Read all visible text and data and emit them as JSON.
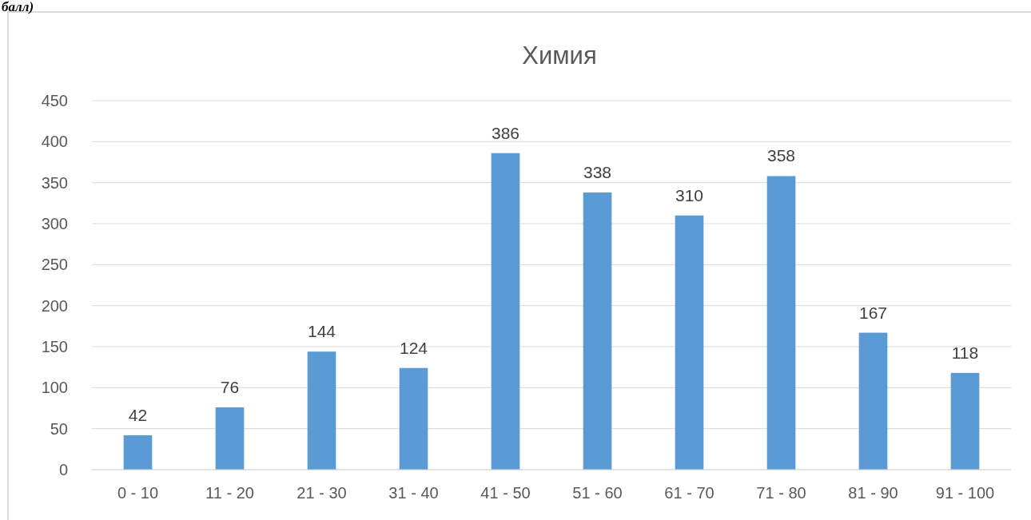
{
  "chart_data": {
    "type": "bar",
    "title": "Химия",
    "annotations": [
      "балл)"
    ],
    "categories": [
      "0 - 10",
      "11 - 20",
      "21 - 30",
      "31 - 40",
      "41 - 50",
      "51 - 60",
      "61 - 70",
      "71 - 80",
      "81 - 90",
      "91 - 100"
    ],
    "values": [
      42,
      76,
      144,
      124,
      386,
      338,
      310,
      358,
      167,
      118
    ],
    "color": "#5b9bd5",
    "ylim": [
      0,
      450
    ],
    "yticks": [
      0,
      50,
      100,
      150,
      200,
      250,
      300,
      350,
      400,
      450
    ],
    "grid": "y",
    "data_labels": true
  }
}
